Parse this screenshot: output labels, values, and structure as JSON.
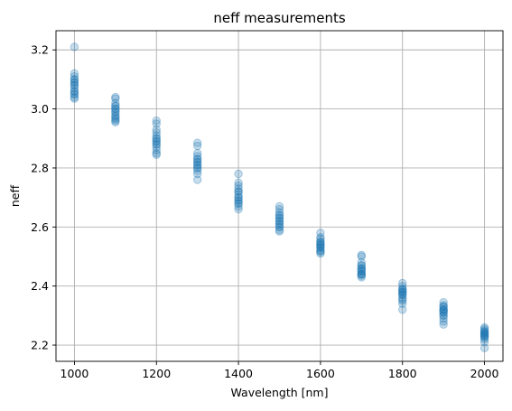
{
  "chart_data": {
    "type": "scatter",
    "title": "neff measurements",
    "xlabel": "Wavelength [nm]",
    "ylabel": "neff",
    "xlim": [
      955,
      2045
    ],
    "ylim": [
      2.145,
      3.265
    ],
    "xticks": [
      1000,
      1200,
      1400,
      1600,
      1800,
      2000
    ],
    "xtick_labels": [
      "1000",
      "1200",
      "1400",
      "1600",
      "1800",
      "2000"
    ],
    "yticks": [
      2.2,
      2.4,
      2.6,
      2.8,
      3.0,
      3.2
    ],
    "ytick_labels": [
      "2.2",
      "2.4",
      "2.6",
      "2.8",
      "3.0",
      "3.2"
    ],
    "grid": true,
    "legend": "none",
    "marker_color": "#1f77b4",
    "marker_alpha": 0.25,
    "series": [
      {
        "x": [
          1000,
          1000,
          1000,
          1000,
          1000,
          1000,
          1000,
          1000,
          1000,
          1000,
          1000,
          1000,
          1000,
          1000,
          1000,
          1000,
          1100,
          1100,
          1100,
          1100,
          1100,
          1100,
          1100,
          1100,
          1100,
          1100,
          1100,
          1100,
          1100,
          1100,
          1100,
          1200,
          1200,
          1200,
          1200,
          1200,
          1200,
          1200,
          1200,
          1200,
          1200,
          1200,
          1200,
          1200,
          1200,
          1200,
          1300,
          1300,
          1300,
          1300,
          1300,
          1300,
          1300,
          1300,
          1300,
          1300,
          1300,
          1300,
          1300,
          1300,
          1300,
          1400,
          1400,
          1400,
          1400,
          1400,
          1400,
          1400,
          1400,
          1400,
          1400,
          1400,
          1400,
          1400,
          1400,
          1400,
          1500,
          1500,
          1500,
          1500,
          1500,
          1500,
          1500,
          1500,
          1500,
          1500,
          1500,
          1500,
          1500,
          1500,
          1500,
          1600,
          1600,
          1600,
          1600,
          1600,
          1600,
          1600,
          1600,
          1600,
          1600,
          1600,
          1600,
          1600,
          1600,
          1600,
          1700,
          1700,
          1700,
          1700,
          1700,
          1700,
          1700,
          1700,
          1700,
          1700,
          1700,
          1700,
          1700,
          1700,
          1700,
          1800,
          1800,
          1800,
          1800,
          1800,
          1800,
          1800,
          1800,
          1800,
          1800,
          1800,
          1800,
          1800,
          1800,
          1800,
          1900,
          1900,
          1900,
          1900,
          1900,
          1900,
          1900,
          1900,
          1900,
          1900,
          1900,
          1900,
          1900,
          1900,
          1900,
          2000,
          2000,
          2000,
          2000,
          2000,
          2000,
          2000,
          2000,
          2000,
          2000,
          2000,
          2000,
          2000,
          2000,
          2000
        ],
        "y": [
          3.21,
          3.12,
          3.11,
          3.1,
          3.1,
          3.09,
          3.09,
          3.08,
          3.08,
          3.07,
          3.06,
          3.06,
          3.05,
          3.05,
          3.04,
          3.035,
          3.04,
          3.035,
          3.02,
          3.01,
          3.0,
          3.0,
          2.99,
          2.99,
          2.98,
          2.975,
          2.97,
          2.965,
          2.96,
          2.955,
          3.01,
          2.96,
          2.95,
          2.93,
          2.92,
          2.91,
          2.9,
          2.89,
          2.89,
          2.88,
          2.87,
          2.86,
          2.85,
          2.845,
          2.9,
          2.88,
          2.885,
          2.875,
          2.85,
          2.84,
          2.83,
          2.82,
          2.82,
          2.81,
          2.81,
          2.8,
          2.8,
          2.79,
          2.78,
          2.76,
          2.83,
          2.78,
          2.75,
          2.74,
          2.73,
          2.72,
          2.71,
          2.7,
          2.7,
          2.69,
          2.69,
          2.68,
          2.68,
          2.67,
          2.66,
          2.72,
          2.67,
          2.66,
          2.65,
          2.64,
          2.63,
          2.62,
          2.62,
          2.61,
          2.61,
          2.6,
          2.6,
          2.59,
          2.585,
          2.63,
          2.64,
          2.58,
          2.565,
          2.56,
          2.55,
          2.545,
          2.54,
          2.535,
          2.53,
          2.53,
          2.52,
          2.52,
          2.515,
          2.51,
          2.55,
          2.54,
          2.505,
          2.5,
          2.48,
          2.47,
          2.46,
          2.455,
          2.45,
          2.44,
          2.44,
          2.435,
          2.43,
          2.46,
          2.47,
          2.45,
          2.44,
          2.41,
          2.4,
          2.39,
          2.385,
          2.38,
          2.375,
          2.37,
          2.37,
          2.36,
          2.355,
          2.35,
          2.34,
          2.32,
          2.39,
          2.38,
          2.345,
          2.335,
          2.33,
          2.32,
          2.32,
          2.315,
          2.31,
          2.31,
          2.3,
          2.3,
          2.29,
          2.28,
          2.27,
          2.33,
          2.32,
          2.26,
          2.255,
          2.25,
          2.245,
          2.24,
          2.24,
          2.235,
          2.235,
          2.23,
          2.23,
          2.225,
          2.22,
          2.21,
          2.19,
          2.245
        ]
      }
    ]
  }
}
